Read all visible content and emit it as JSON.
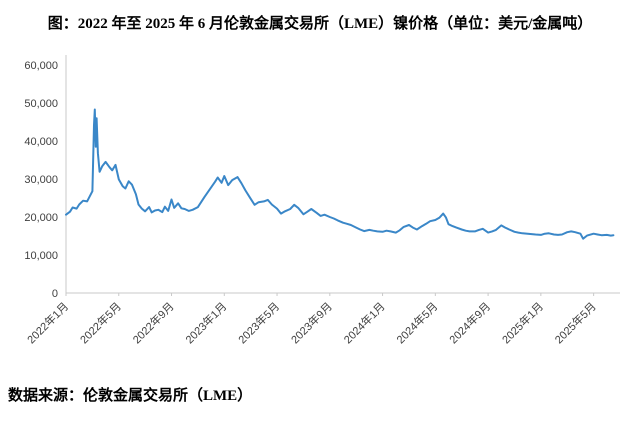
{
  "title": "图：2022 年至 2025 年 6 月伦敦金属交易所（LME）镍价格（单位：美元/金属吨）",
  "source": "数据来源：伦敦金属交易所（LME）",
  "chart_data": {
    "type": "line",
    "title": "2022年至2025年6月伦敦金属交易所（LME）镍价格",
    "ylabel": "美元/金属吨",
    "xlabel": "",
    "ylim": [
      0,
      60000
    ],
    "y_ticks": [
      0,
      10000,
      20000,
      30000,
      40000,
      50000,
      60000
    ],
    "x_tick_labels": [
      "2022年1月",
      "2022年5月",
      "2022年9月",
      "2023年1月",
      "2023年5月",
      "2023年9月",
      "2024年1月",
      "2024年5月",
      "2024年9月",
      "2025年1月",
      "2025年5月"
    ],
    "x_tick_positions": [
      0,
      4,
      8,
      12,
      16,
      20,
      24,
      28,
      32,
      36,
      40
    ],
    "x_unit": "months-since-2022-01",
    "xlim": [
      0,
      42
    ],
    "grid": false,
    "legend": "none",
    "line_color": "#3a87c8",
    "axis_color": "#c9c9c9",
    "points": [
      [
        0,
        20600
      ],
      [
        0.3,
        21400
      ],
      [
        0.5,
        22500
      ],
      [
        0.8,
        22200
      ],
      [
        1,
        23300
      ],
      [
        1.3,
        24300
      ],
      [
        1.6,
        24100
      ],
      [
        2,
        26800
      ],
      [
        2.12,
        44200
      ],
      [
        2.18,
        48300
      ],
      [
        2.26,
        38500
      ],
      [
        2.32,
        46000
      ],
      [
        2.42,
        36800
      ],
      [
        2.55,
        31900
      ],
      [
        2.75,
        33400
      ],
      [
        3,
        34500
      ],
      [
        3.3,
        33100
      ],
      [
        3.5,
        32300
      ],
      [
        3.75,
        33700
      ],
      [
        4,
        29900
      ],
      [
        4.3,
        28100
      ],
      [
        4.5,
        27500
      ],
      [
        4.75,
        29400
      ],
      [
        5,
        28500
      ],
      [
        5.3,
        26000
      ],
      [
        5.5,
        23300
      ],
      [
        5.75,
        22200
      ],
      [
        6,
        21500
      ],
      [
        6.3,
        22600
      ],
      [
        6.5,
        21200
      ],
      [
        6.75,
        21700
      ],
      [
        7,
        21900
      ],
      [
        7.3,
        21300
      ],
      [
        7.5,
        22700
      ],
      [
        7.75,
        21600
      ],
      [
        8,
        24600
      ],
      [
        8.2,
        22400
      ],
      [
        8.5,
        23600
      ],
      [
        8.75,
        22300
      ],
      [
        9,
        22100
      ],
      [
        9.3,
        21600
      ],
      [
        9.6,
        21900
      ],
      [
        10,
        22600
      ],
      [
        10.5,
        25300
      ],
      [
        11,
        27800
      ],
      [
        11.3,
        29300
      ],
      [
        11.5,
        30400
      ],
      [
        11.8,
        29000
      ],
      [
        12,
        30800
      ],
      [
        12.3,
        28400
      ],
      [
        12.6,
        29700
      ],
      [
        13,
        30500
      ],
      [
        13.3,
        28900
      ],
      [
        13.6,
        27000
      ],
      [
        14,
        24800
      ],
      [
        14.3,
        23200
      ],
      [
        14.6,
        23900
      ],
      [
        15,
        24100
      ],
      [
        15.3,
        24500
      ],
      [
        15.6,
        23300
      ],
      [
        16,
        22200
      ],
      [
        16.3,
        20900
      ],
      [
        16.6,
        21500
      ],
      [
        17,
        22100
      ],
      [
        17.3,
        23200
      ],
      [
        17.6,
        22400
      ],
      [
        18,
        20700
      ],
      [
        18.3,
        21400
      ],
      [
        18.6,
        22100
      ],
      [
        19,
        21100
      ],
      [
        19.3,
        20300
      ],
      [
        19.6,
        20600
      ],
      [
        20,
        20000
      ],
      [
        20.3,
        19600
      ],
      [
        20.6,
        19100
      ],
      [
        21,
        18500
      ],
      [
        21.3,
        18200
      ],
      [
        21.6,
        17900
      ],
      [
        22,
        17200
      ],
      [
        22.3,
        16700
      ],
      [
        22.6,
        16300
      ],
      [
        23,
        16600
      ],
      [
        23.3,
        16400
      ],
      [
        23.6,
        16200
      ],
      [
        24,
        16100
      ],
      [
        24.3,
        16400
      ],
      [
        24.6,
        16200
      ],
      [
        25,
        15900
      ],
      [
        25.3,
        16500
      ],
      [
        25.6,
        17400
      ],
      [
        26,
        17900
      ],
      [
        26.3,
        17200
      ],
      [
        26.6,
        16700
      ],
      [
        27,
        17600
      ],
      [
        27.3,
        18200
      ],
      [
        27.6,
        18900
      ],
      [
        28,
        19200
      ],
      [
        28.3,
        19800
      ],
      [
        28.6,
        20900
      ],
      [
        28.8,
        19900
      ],
      [
        29,
        18100
      ],
      [
        29.3,
        17600
      ],
      [
        29.6,
        17200
      ],
      [
        30,
        16700
      ],
      [
        30.3,
        16400
      ],
      [
        30.6,
        16200
      ],
      [
        31,
        16200
      ],
      [
        31.3,
        16600
      ],
      [
        31.6,
        16900
      ],
      [
        32,
        15900
      ],
      [
        32.3,
        16200
      ],
      [
        32.6,
        16600
      ],
      [
        33,
        17800
      ],
      [
        33.3,
        17200
      ],
      [
        33.6,
        16700
      ],
      [
        34,
        16100
      ],
      [
        34.3,
        15900
      ],
      [
        34.6,
        15700
      ],
      [
        35,
        15600
      ],
      [
        35.3,
        15500
      ],
      [
        35.6,
        15400
      ],
      [
        36,
        15300
      ],
      [
        36.3,
        15600
      ],
      [
        36.6,
        15700
      ],
      [
        37,
        15400
      ],
      [
        37.3,
        15300
      ],
      [
        37.6,
        15400
      ],
      [
        38,
        16000
      ],
      [
        38.3,
        16200
      ],
      [
        38.6,
        16000
      ],
      [
        39,
        15600
      ],
      [
        39.2,
        14300
      ],
      [
        39.5,
        15100
      ],
      [
        40,
        15600
      ],
      [
        40.3,
        15400
      ],
      [
        40.6,
        15200
      ],
      [
        41,
        15300
      ],
      [
        41.3,
        15100
      ],
      [
        41.5,
        15200
      ]
    ]
  }
}
